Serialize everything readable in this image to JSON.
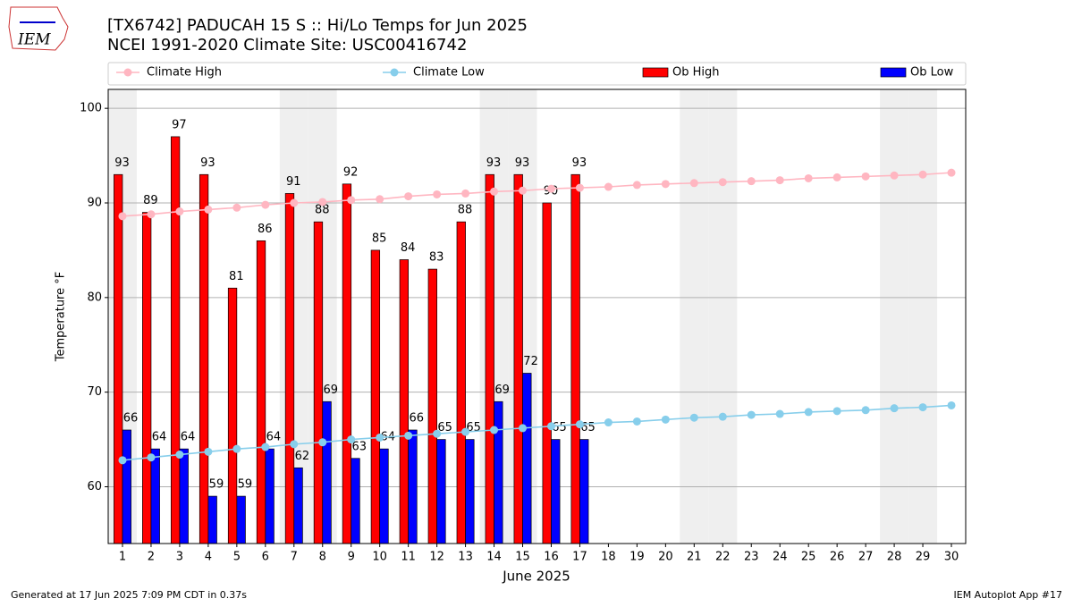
{
  "logo_text": "IEM",
  "chart_data": {
    "type": "bar_line",
    "title": "[TX6742] PADUCAH 15 S :: Hi/Lo Temps for Jun 2025",
    "subtitle": "NCEI 1991-2020 Climate Site: USC00416742",
    "xlabel": "June 2025",
    "ylabel": "Temperature $^\\circ$F",
    "x": [
      1,
      2,
      3,
      4,
      5,
      6,
      7,
      8,
      9,
      10,
      11,
      12,
      13,
      14,
      15,
      16,
      17,
      18,
      19,
      20,
      21,
      22,
      23,
      24,
      25,
      26,
      27,
      28,
      29,
      30
    ],
    "xlim": [
      0.5,
      30.5
    ],
    "xticks": [
      1,
      2,
      3,
      4,
      5,
      6,
      7,
      8,
      9,
      10,
      11,
      12,
      13,
      14,
      15,
      16,
      17,
      18,
      19,
      20,
      21,
      22,
      23,
      24,
      25,
      26,
      27,
      28,
      29,
      30
    ],
    "ylim": [
      54,
      102
    ],
    "yticks": [
      60,
      70,
      80,
      90,
      100
    ],
    "grid": true,
    "shaded_days": [
      1,
      7,
      8,
      14,
      15,
      21,
      22,
      28,
      29
    ],
    "shade_color": "#efefef",
    "series": [
      {
        "name": "Climate High",
        "kind": "line",
        "color": "#ffb6c1",
        "values": [
          88.6,
          88.8,
          89.1,
          89.3,
          89.5,
          89.8,
          90.0,
          90.1,
          90.3,
          90.4,
          90.7,
          90.9,
          91.0,
          91.2,
          91.3,
          91.5,
          91.6,
          91.7,
          91.9,
          92.0,
          92.1,
          92.2,
          92.3,
          92.4,
          92.6,
          92.7,
          92.8,
          92.9,
          93.0,
          93.2
        ]
      },
      {
        "name": "Climate Low",
        "kind": "line",
        "color": "#87ceeb",
        "values": [
          62.8,
          63.1,
          63.4,
          63.7,
          64.0,
          64.2,
          64.5,
          64.7,
          65.0,
          65.2,
          65.4,
          65.6,
          65.8,
          66.0,
          66.2,
          66.4,
          66.6,
          66.8,
          66.9,
          67.1,
          67.3,
          67.4,
          67.6,
          67.7,
          67.9,
          68.0,
          68.1,
          68.3,
          68.4,
          68.6
        ]
      },
      {
        "name": "Ob High",
        "kind": "bar",
        "color": "#ff0000",
        "values": [
          93,
          89,
          97,
          93,
          81,
          86,
          91,
          88,
          92,
          85,
          84,
          83,
          88,
          93,
          93,
          90,
          93,
          null,
          null,
          null,
          null,
          null,
          null,
          null,
          null,
          null,
          null,
          null,
          null,
          null
        ]
      },
      {
        "name": "Ob Low",
        "kind": "bar",
        "color": "#0000ff",
        "values": [
          66,
          64,
          64,
          59,
          59,
          64,
          62,
          69,
          63,
          64,
          66,
          65,
          65,
          69,
          72,
          65,
          65,
          null,
          null,
          null,
          null,
          null,
          null,
          null,
          null,
          null,
          null,
          null,
          null,
          null
        ]
      }
    ]
  },
  "footer_left": "Generated at 17 Jun 2025 7:09 PM CDT in 0.37s",
  "footer_right": "IEM Autoplot App #17"
}
